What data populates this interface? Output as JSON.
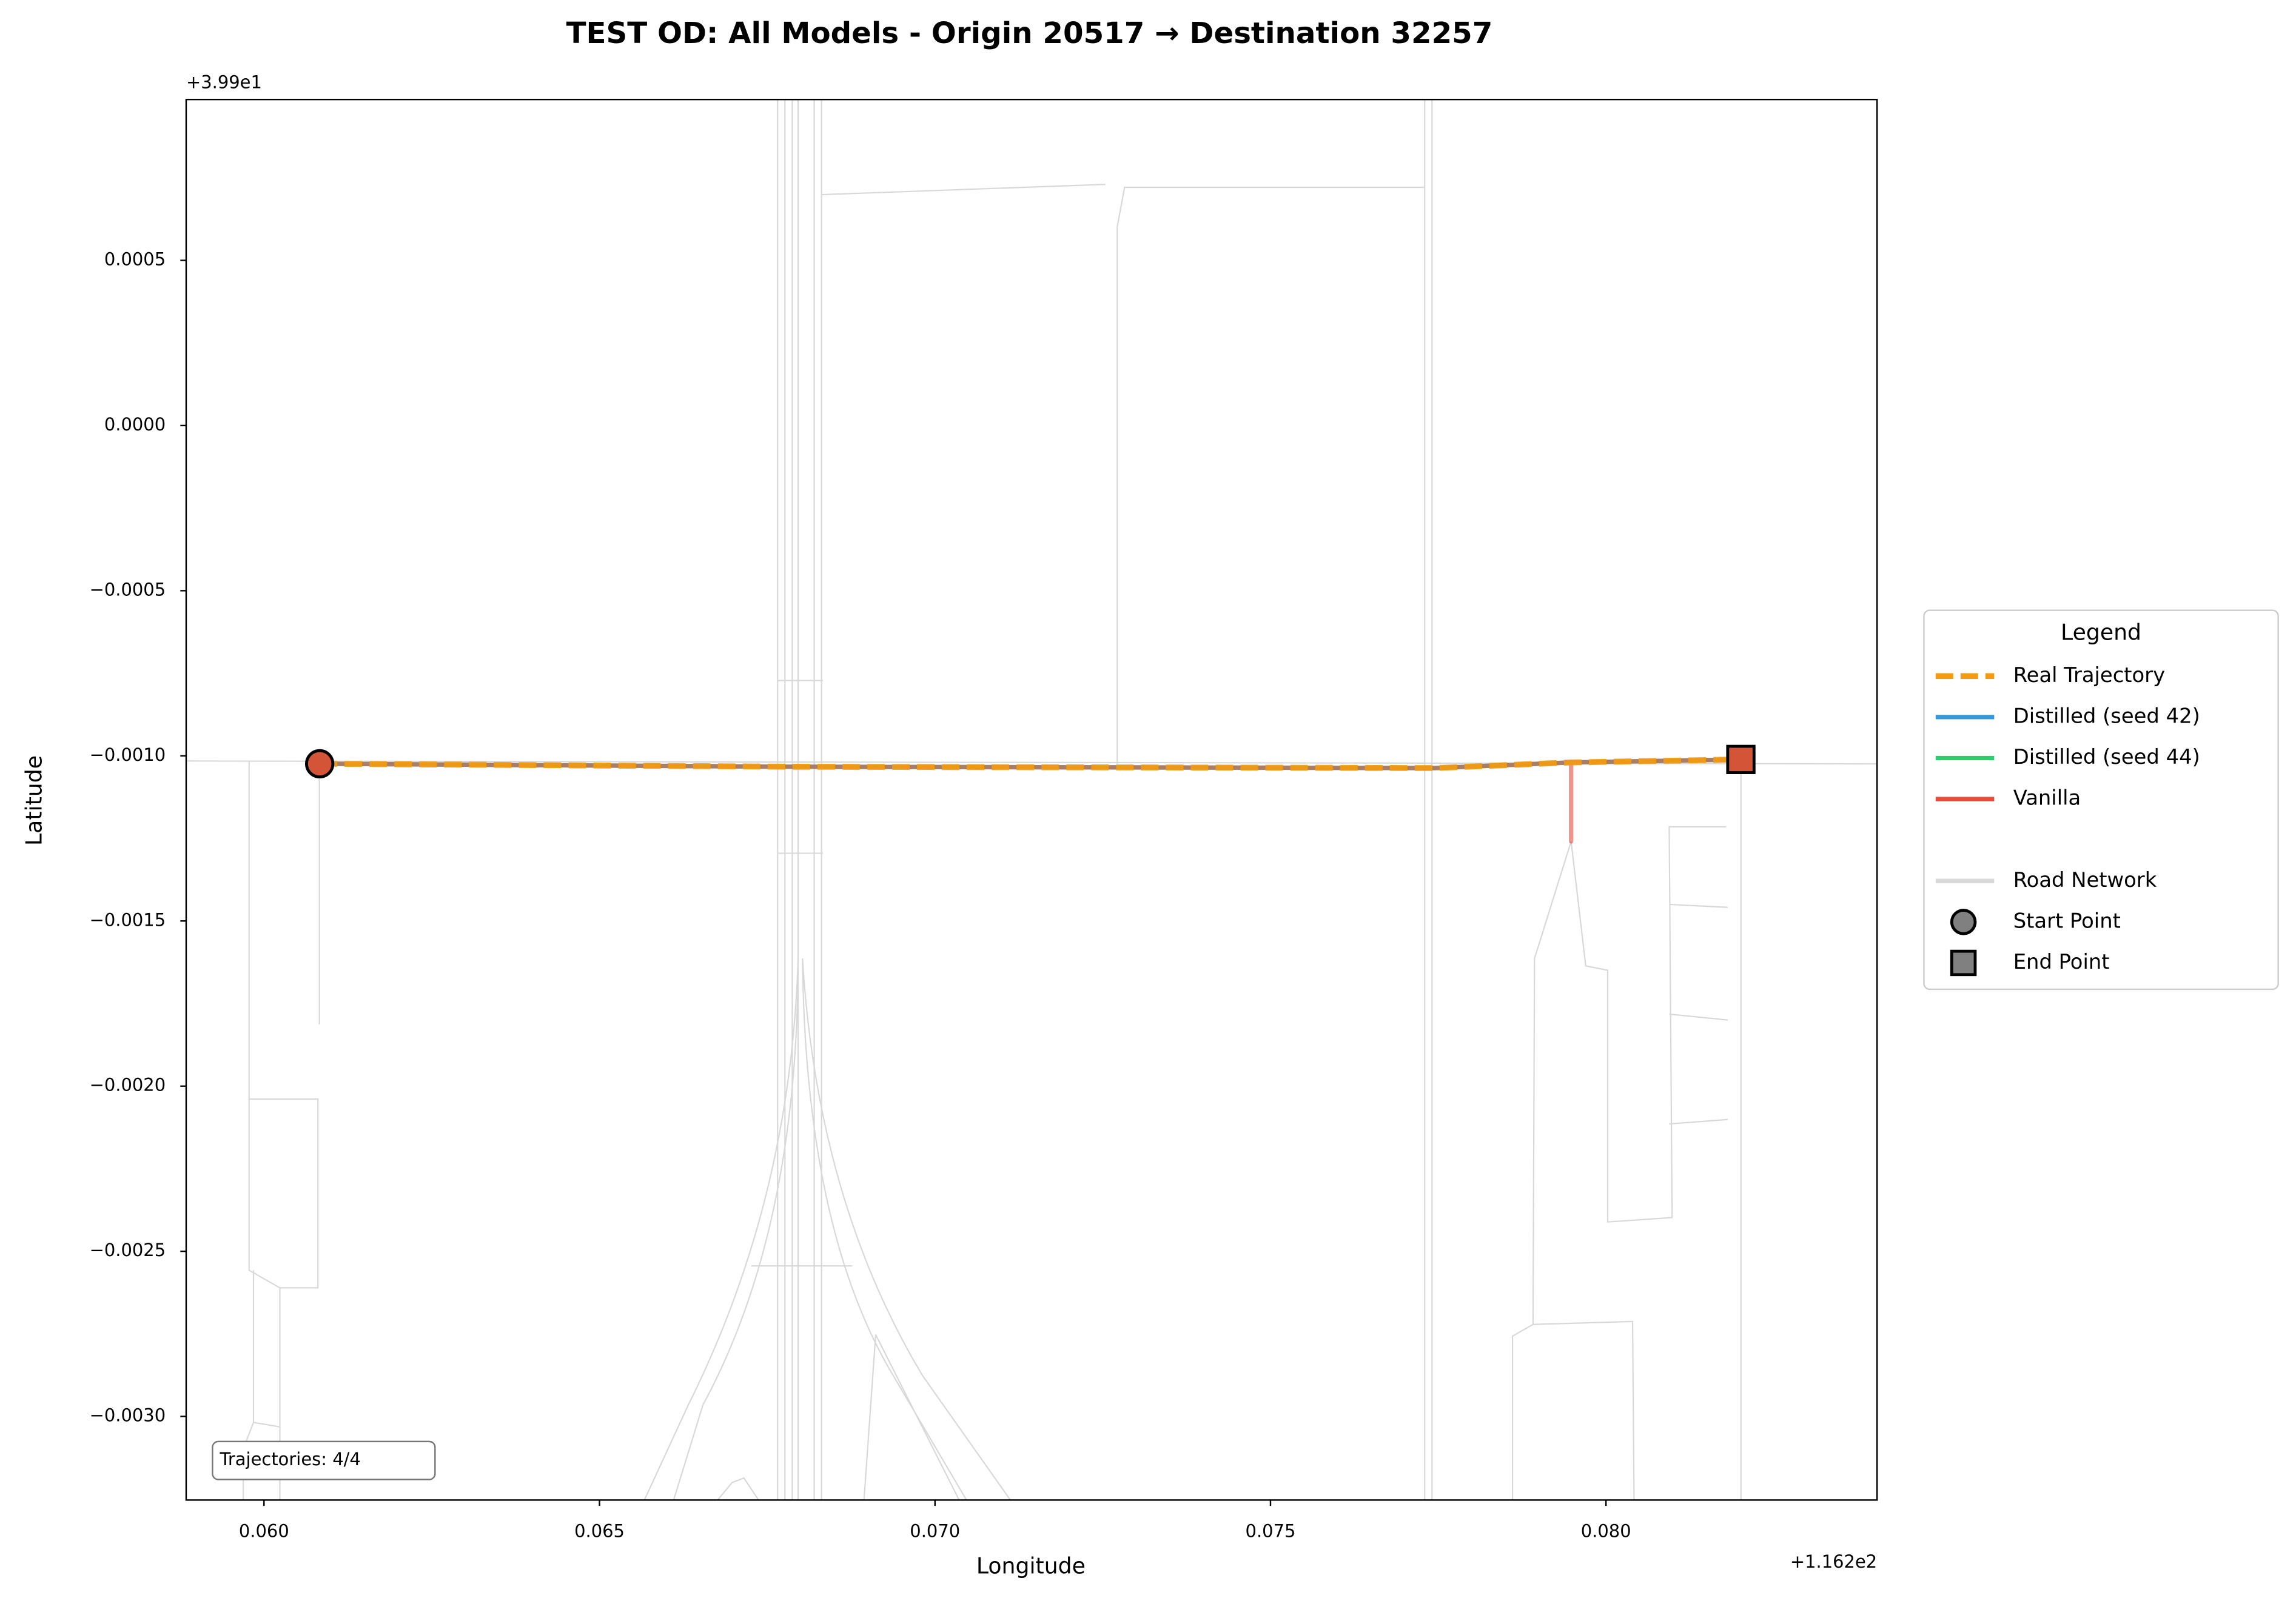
{
  "chart_data": {
    "type": "line",
    "title": "TEST OD: All Models - Origin 20517 → Destination 32257",
    "x_label": "Longitude",
    "y_label": "Latitude",
    "x_offset_label": "+1.162e2",
    "y_offset_label": "+3.99e1",
    "xlim": [
      0.05884,
      0.08404
    ],
    "ylim": [
      -0.003253,
      0.000987
    ],
    "xticks": [
      {
        "value": 0.06,
        "label": "0.060"
      },
      {
        "value": 0.065,
        "label": "0.065"
      },
      {
        "value": 0.07,
        "label": "0.070"
      },
      {
        "value": 0.075,
        "label": "0.075"
      },
      {
        "value": 0.08,
        "label": "0.080"
      }
    ],
    "yticks": [
      {
        "value": 0.0005,
        "label": "0.0005"
      },
      {
        "value": 0.0,
        "label": "0.0000"
      },
      {
        "value": -0.0005,
        "label": "−0.0005"
      },
      {
        "value": -0.001,
        "label": "−0.0010"
      },
      {
        "value": -0.0015,
        "label": "−0.0015"
      },
      {
        "value": -0.002,
        "label": "−0.0020"
      },
      {
        "value": -0.0025,
        "label": "−0.0025"
      },
      {
        "value": -0.003,
        "label": "−0.0030"
      }
    ],
    "series": [
      {
        "name": "Real Trajectory",
        "color": "#f39c12",
        "linestyle": "dashed",
        "x": [
          0.06083,
          0.06785,
          0.07745,
          0.07948,
          0.08201
        ],
        "values": [
          -0.001024,
          -0.001033,
          -0.001037,
          -0.00102,
          -0.001011
        ]
      },
      {
        "name": "Distilled (seed 42)",
        "color": "#3498db",
        "linestyle": "solid",
        "x": [
          0.06083,
          0.06785,
          0.07745,
          0.07948,
          0.08201
        ],
        "values": [
          -0.001024,
          -0.001033,
          -0.001037,
          -0.00102,
          -0.001011
        ]
      },
      {
        "name": "Distilled (seed 44)",
        "color": "#2ecc71",
        "linestyle": "solid",
        "x": [
          0.06083,
          0.06785,
          0.07745,
          0.07948,
          0.08201
        ],
        "values": [
          -0.001024,
          -0.001033,
          -0.001037,
          -0.00102,
          -0.001011
        ]
      },
      {
        "name": "Vanilla",
        "color": "#e74c3c",
        "linestyle": "solid",
        "x": [
          0.06083,
          0.06785,
          0.07745,
          0.07948,
          0.07948,
          0.07948,
          0.08201
        ],
        "values": [
          -0.001024,
          -0.001033,
          -0.001037,
          -0.00102,
          -0.001259,
          -0.00102,
          -0.001011
        ]
      }
    ],
    "start": {
      "x": 0.06083,
      "y": -0.001024
    },
    "end": {
      "x": 0.08201,
      "y": -0.001011
    },
    "marker_color": "#d35436",
    "legend": {
      "title": "Legend",
      "loc": "center left outside",
      "extra": [
        "Road Network",
        "Start Point",
        "End Point"
      ]
    },
    "annotation": "Trajectories: 4/4"
  }
}
